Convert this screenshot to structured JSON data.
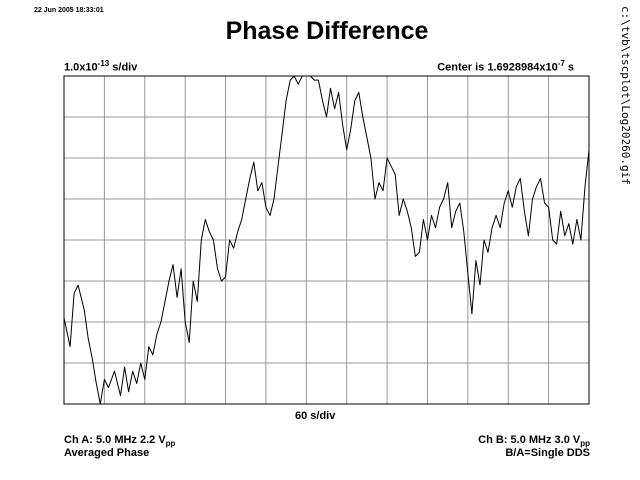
{
  "header": {
    "timestamp": "22 Jun 2005 18:33:01",
    "title": "Phase Difference",
    "side_path": "c:\\tvb\\tscplot\\Log20260.gif"
  },
  "scale": {
    "y_mantissa": "1.0x10",
    "y_exponent": "-13",
    "y_unit": " s/div",
    "center_prefix": "Center is 1.6928984x10",
    "center_exponent": "-7",
    "center_unit": " s",
    "x_label": "60 s/div"
  },
  "footer": {
    "ch_a": "Ch A: 5.0 MHz 2.2 V",
    "ch_a_sub": "pp",
    "mode": "Averaged Phase",
    "ch_b": "Ch B: 5.0 MHz 3.0 V",
    "ch_b_sub": "pp",
    "ref": "B/A=Single DDS"
  },
  "chart_data": {
    "type": "line",
    "xlabel": "60 s/div",
    "ylabel": "1.0x10^-13 s/div",
    "x_divisions": 13,
    "y_divisions": 8,
    "grid": true,
    "xlim": [
      0,
      13
    ],
    "ylim": [
      0,
      8
    ],
    "line_color": "#000000",
    "grid_color": "#999999",
    "series": [
      {
        "x": [
          0,
          0.15,
          0.25,
          0.35,
          0.5,
          0.6,
          0.7,
          0.8,
          0.9,
          1.0,
          1.1,
          1.25,
          1.4,
          1.5,
          1.6,
          1.7,
          1.8,
          1.9,
          2.0,
          2.1,
          2.2,
          2.3,
          2.4,
          2.5,
          2.6,
          2.7,
          2.8,
          2.9,
          3.0,
          3.1,
          3.2,
          3.3,
          3.4,
          3.5,
          3.6,
          3.7,
          3.8,
          3.9,
          4.0,
          4.1,
          4.2,
          4.3,
          4.4,
          4.5,
          4.6,
          4.7,
          4.8,
          4.9,
          5.0,
          5.1,
          5.2,
          5.3,
          5.4,
          5.5,
          5.6,
          5.7,
          5.8,
          5.9,
          6.0,
          6.1,
          6.2,
          6.3,
          6.4,
          6.5,
          6.6,
          6.7,
          6.8,
          6.9,
          7.0,
          7.1,
          7.2,
          7.3,
          7.4,
          7.5,
          7.6,
          7.7,
          7.8,
          7.9,
          8.0,
          8.1,
          8.2,
          8.3,
          8.4,
          8.5,
          8.6,
          8.7,
          8.8,
          8.9,
          9.0,
          9.1,
          9.2,
          9.3,
          9.4,
          9.5,
          9.6,
          9.7,
          9.8,
          9.9,
          10.0,
          10.1,
          10.2,
          10.3,
          10.4,
          10.5,
          10.6,
          10.7,
          10.8,
          10.9,
          11.0,
          11.1,
          11.2,
          11.3,
          11.4,
          11.5,
          11.6,
          11.7,
          11.8,
          11.9,
          12.0,
          12.1,
          12.2,
          12.3,
          12.4,
          12.5,
          12.6,
          12.7,
          12.8,
          12.9,
          13.0
        ],
        "y": [
          2.1,
          1.4,
          2.7,
          2.9,
          2.3,
          1.6,
          1.1,
          0.5,
          0.0,
          0.6,
          0.4,
          0.8,
          0.2,
          0.9,
          0.3,
          0.8,
          0.5,
          1.0,
          0.6,
          1.4,
          1.2,
          1.7,
          2.0,
          2.5,
          3.0,
          3.4,
          2.6,
          3.3,
          2.0,
          1.5,
          3.0,
          2.5,
          4.0,
          4.5,
          4.2,
          4.0,
          3.3,
          3.0,
          3.1,
          4.0,
          3.8,
          4.2,
          4.5,
          5.0,
          5.5,
          5.9,
          5.2,
          5.4,
          4.8,
          4.6,
          5.0,
          5.8,
          6.6,
          7.4,
          7.9,
          8.0,
          7.8,
          8.0,
          8.0,
          8.0,
          7.9,
          7.9,
          7.4,
          7.0,
          7.7,
          7.2,
          7.6,
          6.8,
          6.2,
          6.7,
          7.4,
          7.6,
          7.0,
          6.5,
          6.0,
          5.0,
          5.4,
          5.2,
          6.0,
          5.8,
          5.6,
          4.6,
          5.0,
          4.7,
          4.3,
          3.6,
          3.7,
          4.5,
          4.0,
          4.6,
          4.3,
          4.8,
          5.0,
          5.4,
          4.3,
          4.7,
          4.9,
          4.2,
          3.2,
          2.2,
          3.5,
          2.9,
          4.0,
          3.7,
          4.3,
          4.6,
          4.3,
          4.9,
          5.2,
          4.8,
          5.3,
          5.5,
          4.7,
          4.1,
          5.0,
          5.3,
          5.5,
          4.9,
          4.8,
          4.0,
          3.9,
          4.7,
          4.1,
          4.4,
          3.9,
          4.5,
          4.0,
          5.3,
          6.2
        ]
      }
    ]
  }
}
